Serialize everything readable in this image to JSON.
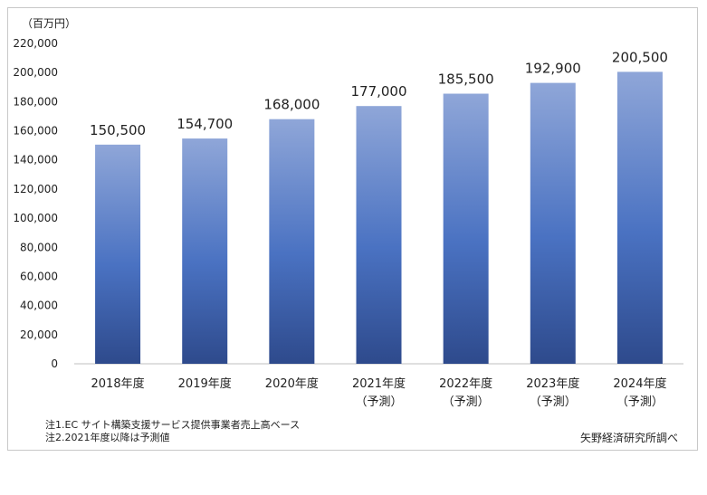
{
  "chart_data": {
    "type": "bar",
    "unit_label": "（百万円）",
    "categories": [
      [
        "2018年度"
      ],
      [
        "2019年度"
      ],
      [
        "2020年度"
      ],
      [
        "2021年度",
        "（予測）"
      ],
      [
        "2022年度",
        "（予測）"
      ],
      [
        "2023年度",
        "（予測）"
      ],
      [
        "2024年度",
        "（予測）"
      ]
    ],
    "values": [
      150500,
      154700,
      168000,
      177000,
      185500,
      192900,
      200500
    ],
    "value_labels": [
      "150,500",
      "154,700",
      "168,000",
      "177,000",
      "185,500",
      "192,900",
      "200,500"
    ],
    "ylim": [
      0,
      220000
    ],
    "yticks": [
      0,
      20000,
      40000,
      60000,
      80000,
      100000,
      120000,
      140000,
      160000,
      180000,
      200000,
      220000
    ],
    "ytick_labels": [
      "0",
      "20,000",
      "40,000",
      "60,000",
      "80,000",
      "100,000",
      "120,000",
      "140,000",
      "160,000",
      "180,000",
      "200,000",
      "220,000"
    ],
    "grid": false,
    "colors": {
      "bar_top": "#8fa6d8",
      "bar_mid": "#4a72c2",
      "bar_bottom": "#2e4a8c",
      "axis": "#bfbfbf"
    }
  },
  "notes": [
    "注1.EC サイト構築支援サービス提供事業者売上高ベース",
    "注2.2021年度以降は予測値"
  ],
  "source": "矢野経済研究所調べ"
}
